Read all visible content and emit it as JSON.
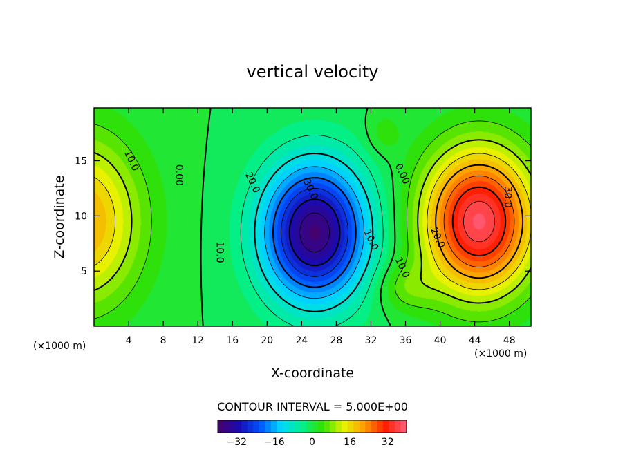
{
  "chart_data": {
    "type": "heatmap",
    "subtype": "filled-contour",
    "title": "vertical velocity",
    "xlabel": "X-coordinate",
    "ylabel": "Z-coordinate",
    "x_unit_label": "(×1000 m)",
    "y_unit_label": "(×1000 m)",
    "xlim": [
      0,
      50.5
    ],
    "ylim": [
      0,
      19.8
    ],
    "x_ticks": [
      4,
      8,
      12,
      16,
      20,
      24,
      28,
      32,
      36,
      40,
      44,
      48
    ],
    "x_tick_labels": [
      "4",
      "8",
      "12",
      "16",
      "20",
      "24",
      "28",
      "32",
      "36",
      "40",
      "44",
      "48"
    ],
    "y_ticks": [
      5,
      10,
      15
    ],
    "y_tick_labels": [
      "5",
      "10",
      "15"
    ],
    "contour_interval_text": "CONTOUR INTERVAL = 5.000E+00",
    "contour_interval": 5,
    "extrema": [
      {
        "name": "left-positive-cell",
        "x": 0.0,
        "z": 9.5,
        "value": 20
      },
      {
        "name": "central-negative-cell",
        "x": 25.5,
        "z": 8.5,
        "value": -38
      },
      {
        "name": "right-positive-cell",
        "x": 44.5,
        "z": 9.5,
        "value": 38
      }
    ],
    "contour_labels": [
      {
        "text": "10.0",
        "x": 4.3,
        "z": 15.0
      },
      {
        "text": "0.00",
        "x": 9.8,
        "z": 13.7
      },
      {
        "text": "20.0",
        "x": 18.3,
        "z": 13.0
      },
      {
        "text": "30.0",
        "x": 25.0,
        "z": 12.4
      },
      {
        "text": "10.0",
        "x": 14.5,
        "z": 6.7
      },
      {
        "text": "10.0",
        "x": 32.0,
        "z": 7.8
      },
      {
        "text": "0.00",
        "x": 35.6,
        "z": 13.8
      },
      {
        "text": "30.0",
        "x": 47.8,
        "z": 11.7
      },
      {
        "text": "20.0",
        "x": 39.7,
        "z": 8.0
      },
      {
        "text": "10.0",
        "x": 35.6,
        "z": 5.3
      }
    ],
    "colorbar": {
      "range": [
        -40,
        40
      ],
      "ticks": [
        -32,
        -16,
        0,
        16,
        32
      ],
      "tick_labels": [
        "−32",
        "−16",
        "0",
        "16",
        "32"
      ],
      "colors": [
        "#4a0066",
        "#1a0bb0",
        "#0050ff",
        "#00d8ff",
        "#00f090",
        "#33e000",
        "#e6f500",
        "#ff9a00",
        "#ff1e00",
        "#ff6080"
      ]
    }
  }
}
